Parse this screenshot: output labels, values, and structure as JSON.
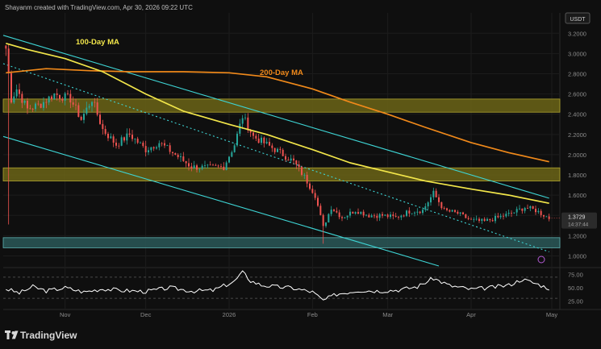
{
  "header": {
    "caption": "Shayanm created with TradingView.com, Apr 30, 2026 09:22 UTC",
    "currency": "USDT"
  },
  "branding": {
    "logo_text": "TradingView"
  },
  "colors": {
    "background": "#0f0f0f",
    "grid": "#1c1c1c",
    "ma100": "#f2e64a",
    "ma200": "#f0891a",
    "channel": "#3ed5d5",
    "zone_yellow": "#6b6416",
    "zone_teal": "#2a5858",
    "candle_up": "#26a69a",
    "candle_down": "#ef5350",
    "rsi": "#ffffff",
    "axis_text": "#8c8c8c"
  },
  "chart_data": [
    {
      "type": "candlestick",
      "title": "",
      "annotations": [
        "100-Day MA",
        "200-Day MA"
      ],
      "y_ticks": [
        "3.2000",
        "3.0000",
        "2.8000",
        "2.6000",
        "2.4000",
        "2.2000",
        "2.0000",
        "1.8000",
        "1.6000",
        "1.4000",
        "1.2000",
        "1.0000"
      ],
      "y_tick_values": [
        3.2,
        3.0,
        2.8,
        2.6,
        2.4,
        2.2,
        2.0,
        1.8,
        1.6,
        1.4,
        1.2,
        1.0
      ],
      "ylim": [
        0.9,
        3.29
      ],
      "xlim": [
        "2025-10-09",
        "2026-05-04"
      ],
      "x_ticks": [
        "Nov",
        "Dec",
        "2026",
        "Feb",
        "Mar",
        "Apr",
        "May"
      ],
      "x_tick_dates": [
        "2025-11-01",
        "2025-12-01",
        "2026-01-01",
        "2026-02-01",
        "2026-03-01",
        "2026-04-01",
        "2026-05-01"
      ],
      "last_price": "1.3729",
      "countdown": "14:37:44",
      "close_points": [
        [
          "2025-10-10",
          3.05
        ],
        [
          "2025-10-12",
          2.55
        ],
        [
          "2025-10-14",
          2.65
        ],
        [
          "2025-10-18",
          2.45
        ],
        [
          "2025-10-23",
          2.5
        ],
        [
          "2025-10-28",
          2.6
        ],
        [
          "2025-11-03",
          2.55
        ],
        [
          "2025-11-07",
          2.35
        ],
        [
          "2025-11-11",
          2.55
        ],
        [
          "2025-11-15",
          2.25
        ],
        [
          "2025-11-20",
          2.1
        ],
        [
          "2025-11-25",
          2.2
        ],
        [
          "2025-12-01",
          2.05
        ],
        [
          "2025-12-06",
          2.12
        ],
        [
          "2025-12-12",
          2.0
        ],
        [
          "2025-12-18",
          1.88
        ],
        [
          "2025-12-24",
          1.87
        ],
        [
          "2025-12-30",
          1.88
        ],
        [
          "2026-01-03",
          2.1
        ],
        [
          "2026-01-06",
          2.38
        ],
        [
          "2026-01-10",
          2.18
        ],
        [
          "2026-01-15",
          2.1
        ],
        [
          "2026-01-20",
          2.02
        ],
        [
          "2026-01-25",
          1.93
        ],
        [
          "2026-01-29",
          1.78
        ],
        [
          "2026-02-02",
          1.6
        ],
        [
          "2026-02-05",
          1.28
        ],
        [
          "2026-02-08",
          1.48
        ],
        [
          "2026-02-12",
          1.38
        ],
        [
          "2026-02-17",
          1.45
        ],
        [
          "2026-02-22",
          1.4
        ],
        [
          "2026-02-27",
          1.4
        ],
        [
          "2026-03-04",
          1.38
        ],
        [
          "2026-03-09",
          1.44
        ],
        [
          "2026-03-14",
          1.45
        ],
        [
          "2026-03-18",
          1.62
        ],
        [
          "2026-03-22",
          1.45
        ],
        [
          "2026-03-27",
          1.42
        ],
        [
          "2026-04-01",
          1.35
        ],
        [
          "2026-04-06",
          1.34
        ],
        [
          "2026-04-11",
          1.38
        ],
        [
          "2026-04-16",
          1.42
        ],
        [
          "2026-04-21",
          1.48
        ],
        [
          "2026-04-25",
          1.45
        ],
        [
          "2026-04-30",
          1.3729
        ]
      ],
      "ma100": [
        [
          "2025-10-10",
          3.1
        ],
        [
          "2025-10-18",
          3.04
        ],
        [
          "2025-11-01",
          2.95
        ],
        [
          "2025-11-15",
          2.82
        ],
        [
          "2025-12-01",
          2.6
        ],
        [
          "2025-12-15",
          2.43
        ],
        [
          "2026-01-01",
          2.3
        ],
        [
          "2026-01-15",
          2.2
        ],
        [
          "2026-02-01",
          2.05
        ],
        [
          "2026-02-15",
          1.92
        ],
        [
          "2026-03-01",
          1.83
        ],
        [
          "2026-03-15",
          1.74
        ],
        [
          "2026-04-01",
          1.66
        ],
        [
          "2026-04-15",
          1.6
        ],
        [
          "2026-04-30",
          1.52
        ]
      ],
      "ma200": [
        [
          "2025-10-10",
          2.81
        ],
        [
          "2025-10-25",
          2.85
        ],
        [
          "2025-11-10",
          2.83
        ],
        [
          "2025-11-25",
          2.82
        ],
        [
          "2025-12-15",
          2.82
        ],
        [
          "2026-01-01",
          2.81
        ],
        [
          "2026-01-15",
          2.77
        ],
        [
          "2026-02-01",
          2.65
        ],
        [
          "2026-02-15",
          2.52
        ],
        [
          "2026-03-01",
          2.4
        ],
        [
          "2026-03-15",
          2.27
        ],
        [
          "2026-04-01",
          2.12
        ],
        [
          "2026-04-15",
          2.02
        ],
        [
          "2026-04-30",
          1.93
        ]
      ],
      "channel_upper": [
        [
          "2025-10-09",
          3.18
        ],
        [
          "2026-04-30",
          1.57
        ]
      ],
      "channel_mid": [
        [
          "2025-10-09",
          2.9
        ],
        [
          "2026-04-30",
          1.04
        ]
      ],
      "channel_lower": [
        [
          "2025-10-09",
          2.18
        ],
        [
          "2026-03-20",
          0.9
        ]
      ],
      "zones": [
        {
          "from": 2.42,
          "to": 2.55
        },
        {
          "from": 1.74,
          "to": 1.87
        },
        {
          "from": 1.08,
          "to": 1.18
        }
      ]
    },
    {
      "type": "line",
      "title": "",
      "y_ticks": [
        "75.00",
        "50.00",
        "25.00"
      ],
      "y_tick_values": [
        75,
        50,
        25
      ],
      "ylim": [
        15,
        85
      ],
      "levels": [
        70,
        30
      ],
      "points": [
        [
          "2025-10-10",
          48
        ],
        [
          "2025-10-15",
          40
        ],
        [
          "2025-10-20",
          52
        ],
        [
          "2025-10-25",
          44
        ],
        [
          "2025-11-01",
          50
        ],
        [
          "2025-11-08",
          42
        ],
        [
          "2025-11-15",
          48
        ],
        [
          "2025-11-22",
          45
        ],
        [
          "2025-12-01",
          43
        ],
        [
          "2025-12-10",
          50
        ],
        [
          "2025-12-18",
          44
        ],
        [
          "2025-12-26",
          45
        ],
        [
          "2026-01-03",
          62
        ],
        [
          "2026-01-06",
          80
        ],
        [
          "2026-01-09",
          63
        ],
        [
          "2026-01-13",
          55
        ],
        [
          "2026-01-18",
          52
        ],
        [
          "2026-01-24",
          50
        ],
        [
          "2026-02-01",
          42
        ],
        [
          "2026-02-05",
          26
        ],
        [
          "2026-02-10",
          38
        ],
        [
          "2026-02-18",
          45
        ],
        [
          "2026-02-26",
          44
        ],
        [
          "2026-03-05",
          46
        ],
        [
          "2026-03-12",
          52
        ],
        [
          "2026-03-18",
          68
        ],
        [
          "2026-03-24",
          54
        ],
        [
          "2026-04-01",
          47
        ],
        [
          "2026-04-08",
          50
        ],
        [
          "2026-04-15",
          55
        ],
        [
          "2026-04-20",
          66
        ],
        [
          "2026-04-25",
          58
        ],
        [
          "2026-04-30",
          49
        ]
      ]
    }
  ]
}
